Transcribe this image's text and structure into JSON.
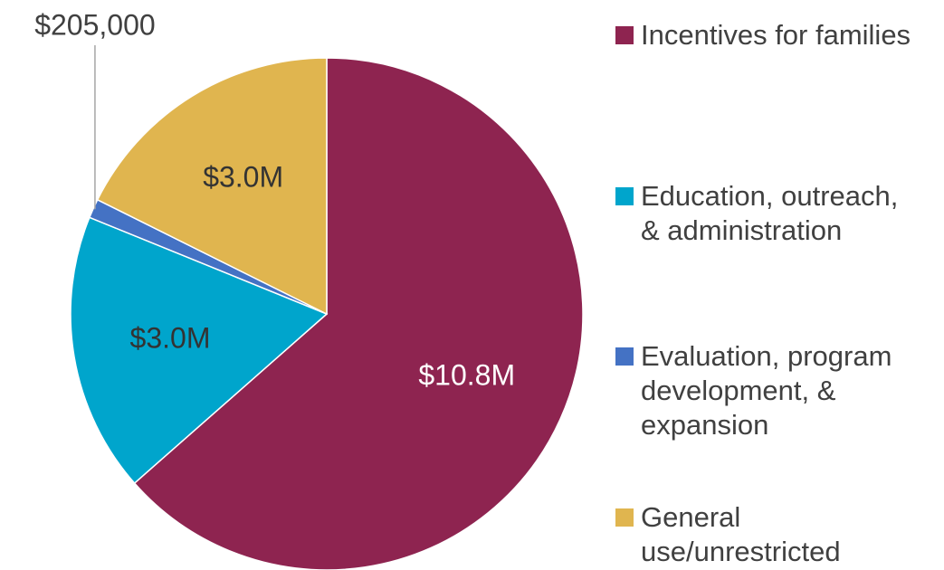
{
  "chart_data": {
    "type": "pie",
    "categories": [
      "Incentives for families",
      "Education, outreach, & administration",
      "Evaluation, program development, & expansion",
      "General use/unrestricted"
    ],
    "values": [
      10800000,
      3000000,
      205000,
      3000000
    ],
    "value_labels": [
      "$10.8M",
      "$3.0M",
      "$205,000",
      "$3.0M"
    ],
    "colors": [
      "#8e2450",
      "#00a5cc",
      "#4472c4",
      "#e0b54f"
    ],
    "legend": "right"
  }
}
